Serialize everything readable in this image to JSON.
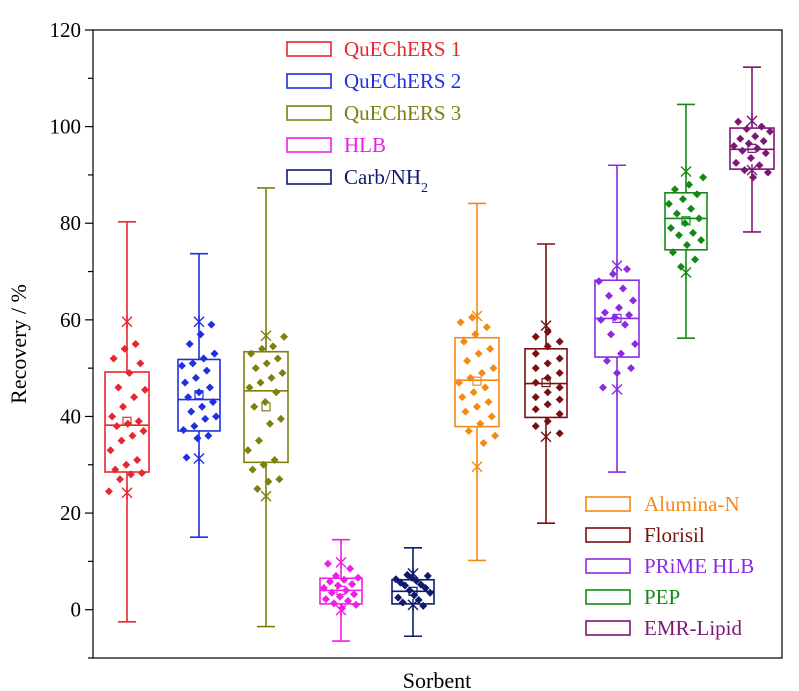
{
  "chart_data": {
    "type": "box",
    "title": "",
    "xlabel": "Sorbent",
    "ylabel": "Recovery / %",
    "ylim": [
      -10,
      120
    ],
    "yticks": [
      0,
      20,
      40,
      60,
      80,
      100,
      120
    ],
    "ytick_labels": [
      "0",
      "20",
      "40",
      "60",
      "80",
      "100",
      "120"
    ],
    "legend_top": [
      "QuEChERS 1",
      "QuEChERS 2",
      "QuEChERS 3",
      "HLB",
      "Carb/NH"
    ],
    "legend_top_sub": "2",
    "legend_bottom": [
      "Alumina-N",
      "Florisil",
      "PRiME HLB",
      "PEP",
      "EMR-Lipid"
    ],
    "series": [
      {
        "name": "QuEChERS 1",
        "color": "#e8262e",
        "min": -2.5,
        "q1": 28.5,
        "median": 38.2,
        "q3": 49.2,
        "max": 80.3,
        "mean": 39.0,
        "star_lo": 24.2,
        "star_hi": 59.6,
        "points": [
          24.5,
          27,
          28,
          28.3,
          29,
          30,
          31,
          33,
          35,
          36,
          37,
          38,
          38.5,
          39,
          40,
          42,
          44,
          45.5,
          46,
          49,
          51,
          52,
          54,
          55
        ]
      },
      {
        "name": "QuEChERS 2",
        "color": "#1f30e0",
        "min": 15.0,
        "q1": 37.0,
        "median": 43.5,
        "q3": 51.8,
        "max": 73.7,
        "mean": 44.5,
        "star_lo": 31.3,
        "star_hi": 59.6,
        "points": [
          31.5,
          35.5,
          36,
          37.2,
          38,
          39.5,
          40,
          41,
          42,
          43,
          44,
          45,
          46,
          47,
          48,
          49.5,
          50.5,
          51,
          52,
          53,
          55,
          57,
          59
        ]
      },
      {
        "name": "QuEChERS 3",
        "color": "#7f7f0e",
        "min": -3.5,
        "q1": 30.5,
        "median": 45.3,
        "q3": 53.4,
        "max": 87.3,
        "mean": 42.0,
        "star_lo": 23.5,
        "star_hi": 56.7,
        "points": [
          25,
          26.5,
          27,
          29,
          30,
          31,
          33,
          35,
          38.5,
          39.5,
          42,
          43,
          45,
          46,
          47,
          48,
          49,
          50,
          51,
          52,
          53,
          54,
          54.5,
          56.5
        ]
      },
      {
        "name": "HLB",
        "color": "#ee1ee8",
        "min": -6.5,
        "q1": 1.2,
        "median": 4.0,
        "q3": 6.5,
        "max": 14.5,
        "mean": 4.0,
        "star_lo": -0.1,
        "star_hi": 9.8,
        "points": [
          0.3,
          1,
          1.3,
          1.8,
          2.2,
          2.7,
          3.2,
          3.5,
          4,
          4.5,
          5,
          5.3,
          5.8,
          6.2,
          6.6,
          7,
          8.5,
          9.5
        ]
      },
      {
        "name": "Carb/NH2",
        "color": "#0f1a6e",
        "min": -5.5,
        "q1": 1.2,
        "median": 3.8,
        "q3": 6.2,
        "max": 12.8,
        "mean": 3.8,
        "star_lo": 1.0,
        "star_hi": 7.5,
        "points": [
          0.8,
          1.5,
          2,
          2.5,
          3,
          3.5,
          4,
          4.5,
          5,
          5.2,
          5.6,
          6,
          6.3,
          6.6,
          7,
          7.2
        ]
      },
      {
        "name": "Alumina-N",
        "color": "#f38a16",
        "min": 10.2,
        "q1": 37.9,
        "median": 47.5,
        "q3": 56.3,
        "max": 84.1,
        "mean": 47.3,
        "star_lo": 29.6,
        "star_hi": 60.8,
        "points": [
          34.5,
          36,
          37,
          38.5,
          40,
          41,
          42,
          43,
          44,
          45,
          46,
          47,
          48,
          49,
          50,
          51.5,
          53,
          54,
          55.5,
          57,
          58.5,
          59.5,
          60.5
        ]
      },
      {
        "name": "Florisil",
        "color": "#7a1010",
        "min": 17.9,
        "q1": 39.8,
        "median": 46.8,
        "q3": 54.0,
        "max": 75.7,
        "mean": 47.0,
        "star_lo": 35.8,
        "star_hi": 58.8,
        "points": [
          36.5,
          38,
          39,
          40.5,
          41.5,
          42.5,
          43.5,
          44,
          45,
          46,
          47,
          48,
          49,
          50,
          51,
          52,
          53,
          54.5,
          55.5,
          56.5,
          57.5
        ]
      },
      {
        "name": "PRiME HLB",
        "color": "#8a2be2",
        "min": 28.5,
        "q1": 52.3,
        "median": 60.3,
        "q3": 68.2,
        "max": 92.0,
        "mean": 60.3,
        "star_lo": 45.6,
        "star_hi": 71.2,
        "points": [
          46,
          49,
          50,
          51.5,
          53,
          55,
          57,
          59,
          60,
          60.5,
          61,
          61.5,
          62.5,
          64,
          65,
          66.5,
          68,
          69.5,
          70.5
        ]
      },
      {
        "name": "PEP",
        "color": "#138a18",
        "min": 56.2,
        "q1": 74.5,
        "median": 81.0,
        "q3": 86.3,
        "max": 104.6,
        "mean": 80.5,
        "star_lo": 69.8,
        "star_hi": 90.7,
        "points": [
          71,
          72.5,
          74,
          75.5,
          76.5,
          77.5,
          78,
          79,
          80,
          81,
          82,
          83,
          84,
          85,
          86,
          87,
          88,
          89.5
        ]
      },
      {
        "name": "EMR-Lipid",
        "color": "#7d1777",
        "min": 78.2,
        "q1": 91.2,
        "median": 95.3,
        "q3": 99.7,
        "max": 112.3,
        "mean": 95.5,
        "star_lo": 91.0,
        "star_hi": 101.2,
        "points": [
          89.5,
          90.5,
          91,
          92,
          92.5,
          93.5,
          94.5,
          95,
          95.5,
          96,
          96.5,
          97,
          97.5,
          98,
          99,
          99.5,
          100,
          101
        ]
      }
    ]
  }
}
